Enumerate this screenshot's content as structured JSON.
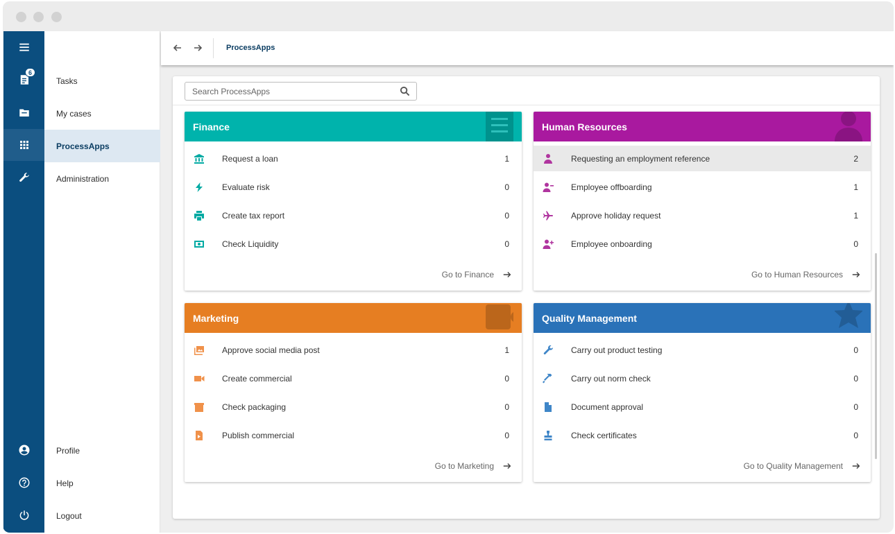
{
  "window": {
    "title_dots": [
      "close",
      "minimize",
      "maximize"
    ]
  },
  "rail": {
    "menu_icon": "menu-icon",
    "tasks_badge": "6",
    "icons": [
      "tasks-icon",
      "cases-icon",
      "apps-grid-icon",
      "wrench-icon",
      "profile-icon",
      "help-icon",
      "power-icon"
    ]
  },
  "nav": {
    "items": [
      {
        "label": "Tasks"
      },
      {
        "label": "My cases"
      },
      {
        "label": "ProcessApps"
      },
      {
        "label": "Administration"
      }
    ],
    "bottom": [
      {
        "label": "Profile"
      },
      {
        "label": "Help"
      },
      {
        "label": "Logout"
      }
    ]
  },
  "topbar": {
    "breadcrumb": "ProcessApps"
  },
  "search": {
    "placeholder": "Search ProcessApps"
  },
  "cards": [
    {
      "title": "Finance",
      "color": "#00b3ac",
      "icon_color": "#00aaa3",
      "deco": "list-deco-icon",
      "rows": [
        {
          "icon": "bank-icon",
          "label": "Request a loan",
          "count": "1"
        },
        {
          "icon": "bolt-icon",
          "label": "Evaluate risk",
          "count": "0"
        },
        {
          "icon": "printer-icon",
          "label": "Create tax report",
          "count": "0"
        },
        {
          "icon": "money-icon",
          "label": "Check Liquidity",
          "count": "0"
        }
      ],
      "footer": "Go to Finance"
    },
    {
      "title": "Human Resources",
      "color": "#a9199f",
      "icon_color": "#b0359f",
      "deco": "person-deco-icon",
      "rows": [
        {
          "icon": "person-tie-icon",
          "label": "Requesting an employment reference",
          "count": "2"
        },
        {
          "icon": "person-remove-icon",
          "label": "Employee offboarding",
          "count": "1"
        },
        {
          "icon": "airplane-icon",
          "label": "Approve holiday request",
          "count": "1"
        },
        {
          "icon": "person-add-icon",
          "label": "Employee onboarding",
          "count": "0"
        }
      ],
      "footer": "Go to Human Resources"
    },
    {
      "title": "Marketing",
      "color": "#e67e22",
      "icon_color": "#f0914a",
      "deco": "photo-deco-icon",
      "rows": [
        {
          "icon": "photos-icon",
          "label": "Approve social media post",
          "count": "1"
        },
        {
          "icon": "video-camera-icon",
          "label": "Create commercial",
          "count": "0"
        },
        {
          "icon": "package-icon",
          "label": "Check packaging",
          "count": "0"
        },
        {
          "icon": "video-file-icon",
          "label": "Publish commercial",
          "count": "0"
        }
      ],
      "footer": "Go to Marketing"
    },
    {
      "title": "Quality Management",
      "color": "#2a72b8",
      "icon_color": "#3f86c8",
      "deco": "star-deco-icon",
      "rows": [
        {
          "icon": "wrench-icon",
          "label": "Carry out product testing",
          "count": "0"
        },
        {
          "icon": "hammer-icon",
          "label": "Carry out norm check",
          "count": "0"
        },
        {
          "icon": "document-icon",
          "label": "Document approval",
          "count": "0"
        },
        {
          "icon": "stamp-icon",
          "label": "Check certificates",
          "count": "0"
        }
      ],
      "footer": "Go to Quality Management"
    }
  ]
}
